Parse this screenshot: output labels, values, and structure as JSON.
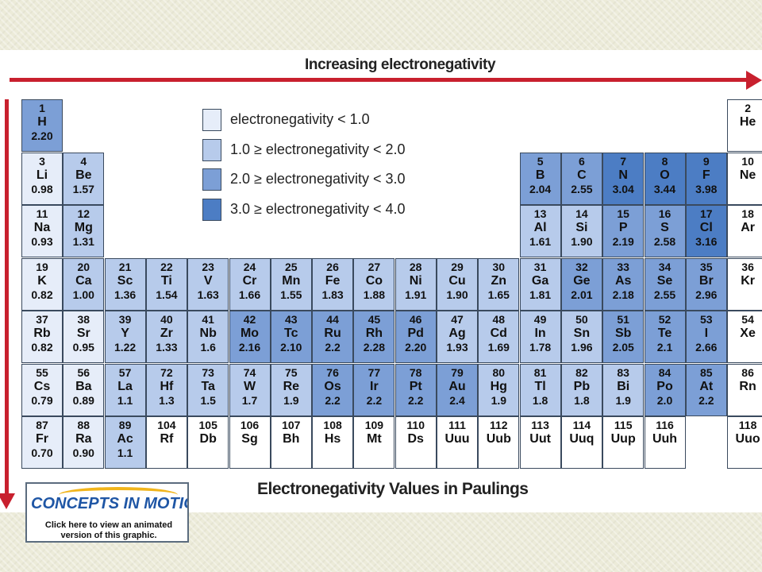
{
  "titles": {
    "top": "Increasing electronegativity",
    "bottom": "Electronegativity Values in Paulings"
  },
  "colors": {
    "arrow": "#c8202e",
    "lt_1_0": "#e6edf9",
    "range_1_0_2_0": "#b7cbeb",
    "range_2_0_3_0": "#7c9fd6",
    "range_3_0_4_0": "#4c7dc4",
    "none": "#ffffff"
  },
  "legend": [
    {
      "text": "electronegativity < 1.0",
      "color": "#e6edf9"
    },
    {
      "text": "1.0 ≥ electronegativity < 2.0",
      "color": "#b7cbeb"
    },
    {
      "text": "2.0 ≥ electronegativity < 3.0",
      "color": "#7c9fd6"
    },
    {
      "text": "3.0 ≥ electronegativity < 4.0",
      "color": "#4c7dc4"
    }
  ],
  "elements": [
    {
      "n": "1",
      "s": "H",
      "v": "2.20",
      "row": 1,
      "col": 1,
      "c": 3
    },
    {
      "n": "2",
      "s": "He",
      "v": "",
      "row": 1,
      "col": 18,
      "c": 0
    },
    {
      "n": "3",
      "s": "Li",
      "v": "0.98",
      "row": 2,
      "col": 1,
      "c": 1
    },
    {
      "n": "4",
      "s": "Be",
      "v": "1.57",
      "row": 2,
      "col": 2,
      "c": 2
    },
    {
      "n": "5",
      "s": "B",
      "v": "2.04",
      "row": 2,
      "col": 13,
      "c": 3
    },
    {
      "n": "6",
      "s": "C",
      "v": "2.55",
      "row": 2,
      "col": 14,
      "c": 3
    },
    {
      "n": "7",
      "s": "N",
      "v": "3.04",
      "row": 2,
      "col": 15,
      "c": 4
    },
    {
      "n": "8",
      "s": "O",
      "v": "3.44",
      "row": 2,
      "col": 16,
      "c": 4
    },
    {
      "n": "9",
      "s": "F",
      "v": "3.98",
      "row": 2,
      "col": 17,
      "c": 4
    },
    {
      "n": "10",
      "s": "Ne",
      "v": "",
      "row": 2,
      "col": 18,
      "c": 0
    },
    {
      "n": "11",
      "s": "Na",
      "v": "0.93",
      "row": 3,
      "col": 1,
      "c": 1
    },
    {
      "n": "12",
      "s": "Mg",
      "v": "1.31",
      "row": 3,
      "col": 2,
      "c": 2
    },
    {
      "n": "13",
      "s": "Al",
      "v": "1.61",
      "row": 3,
      "col": 13,
      "c": 2
    },
    {
      "n": "14",
      "s": "Si",
      "v": "1.90",
      "row": 3,
      "col": 14,
      "c": 2
    },
    {
      "n": "15",
      "s": "P",
      "v": "2.19",
      "row": 3,
      "col": 15,
      "c": 3
    },
    {
      "n": "16",
      "s": "S",
      "v": "2.58",
      "row": 3,
      "col": 16,
      "c": 3
    },
    {
      "n": "17",
      "s": "Cl",
      "v": "3.16",
      "row": 3,
      "col": 17,
      "c": 4
    },
    {
      "n": "18",
      "s": "Ar",
      "v": "",
      "row": 3,
      "col": 18,
      "c": 0
    },
    {
      "n": "19",
      "s": "K",
      "v": "0.82",
      "row": 4,
      "col": 1,
      "c": 1
    },
    {
      "n": "20",
      "s": "Ca",
      "v": "1.00",
      "row": 4,
      "col": 2,
      "c": 2
    },
    {
      "n": "21",
      "s": "Sc",
      "v": "1.36",
      "row": 4,
      "col": 3,
      "c": 2
    },
    {
      "n": "22",
      "s": "Ti",
      "v": "1.54",
      "row": 4,
      "col": 4,
      "c": 2
    },
    {
      "n": "23",
      "s": "V",
      "v": "1.63",
      "row": 4,
      "col": 5,
      "c": 2
    },
    {
      "n": "24",
      "s": "Cr",
      "v": "1.66",
      "row": 4,
      "col": 6,
      "c": 2
    },
    {
      "n": "25",
      "s": "Mn",
      "v": "1.55",
      "row": 4,
      "col": 7,
      "c": 2
    },
    {
      "n": "26",
      "s": "Fe",
      "v": "1.83",
      "row": 4,
      "col": 8,
      "c": 2
    },
    {
      "n": "27",
      "s": "Co",
      "v": "1.88",
      "row": 4,
      "col": 9,
      "c": 2
    },
    {
      "n": "28",
      "s": "Ni",
      "v": "1.91",
      "row": 4,
      "col": 10,
      "c": 2
    },
    {
      "n": "29",
      "s": "Cu",
      "v": "1.90",
      "row": 4,
      "col": 11,
      "c": 2
    },
    {
      "n": "30",
      "s": "Zn",
      "v": "1.65",
      "row": 4,
      "col": 12,
      "c": 2
    },
    {
      "n": "31",
      "s": "Ga",
      "v": "1.81",
      "row": 4,
      "col": 13,
      "c": 2
    },
    {
      "n": "32",
      "s": "Ge",
      "v": "2.01",
      "row": 4,
      "col": 14,
      "c": 3
    },
    {
      "n": "33",
      "s": "As",
      "v": "2.18",
      "row": 4,
      "col": 15,
      "c": 3
    },
    {
      "n": "34",
      "s": "Se",
      "v": "2.55",
      "row": 4,
      "col": 16,
      "c": 3
    },
    {
      "n": "35",
      "s": "Br",
      "v": "2.96",
      "row": 4,
      "col": 17,
      "c": 3
    },
    {
      "n": "36",
      "s": "Kr",
      "v": "",
      "row": 4,
      "col": 18,
      "c": 0
    },
    {
      "n": "37",
      "s": "Rb",
      "v": "0.82",
      "row": 5,
      "col": 1,
      "c": 1
    },
    {
      "n": "38",
      "s": "Sr",
      "v": "0.95",
      "row": 5,
      "col": 2,
      "c": 1
    },
    {
      "n": "39",
      "s": "Y",
      "v": "1.22",
      "row": 5,
      "col": 3,
      "c": 2
    },
    {
      "n": "40",
      "s": "Zr",
      "v": "1.33",
      "row": 5,
      "col": 4,
      "c": 2
    },
    {
      "n": "41",
      "s": "Nb",
      "v": "1.6",
      "row": 5,
      "col": 5,
      "c": 2
    },
    {
      "n": "42",
      "s": "Mo",
      "v": "2.16",
      "row": 5,
      "col": 6,
      "c": 3
    },
    {
      "n": "43",
      "s": "Tc",
      "v": "2.10",
      "row": 5,
      "col": 7,
      "c": 3
    },
    {
      "n": "44",
      "s": "Ru",
      "v": "2.2",
      "row": 5,
      "col": 8,
      "c": 3
    },
    {
      "n": "45",
      "s": "Rh",
      "v": "2.28",
      "row": 5,
      "col": 9,
      "c": 3
    },
    {
      "n": "46",
      "s": "Pd",
      "v": "2.20",
      "row": 5,
      "col": 10,
      "c": 3
    },
    {
      "n": "47",
      "s": "Ag",
      "v": "1.93",
      "row": 5,
      "col": 11,
      "c": 2
    },
    {
      "n": "48",
      "s": "Cd",
      "v": "1.69",
      "row": 5,
      "col": 12,
      "c": 2
    },
    {
      "n": "49",
      "s": "In",
      "v": "1.78",
      "row": 5,
      "col": 13,
      "c": 2
    },
    {
      "n": "50",
      "s": "Sn",
      "v": "1.96",
      "row": 5,
      "col": 14,
      "c": 2
    },
    {
      "n": "51",
      "s": "Sb",
      "v": "2.05",
      "row": 5,
      "col": 15,
      "c": 3
    },
    {
      "n": "52",
      "s": "Te",
      "v": "2.1",
      "row": 5,
      "col": 16,
      "c": 3
    },
    {
      "n": "53",
      "s": "I",
      "v": "2.66",
      "row": 5,
      "col": 17,
      "c": 3
    },
    {
      "n": "54",
      "s": "Xe",
      "v": "",
      "row": 5,
      "col": 18,
      "c": 0
    },
    {
      "n": "55",
      "s": "Cs",
      "v": "0.79",
      "row": 6,
      "col": 1,
      "c": 1
    },
    {
      "n": "56",
      "s": "Ba",
      "v": "0.89",
      "row": 6,
      "col": 2,
      "c": 1
    },
    {
      "n": "57",
      "s": "La",
      "v": "1.1",
      "row": 6,
      "col": 3,
      "c": 2
    },
    {
      "n": "72",
      "s": "Hf",
      "v": "1.3",
      "row": 6,
      "col": 4,
      "c": 2
    },
    {
      "n": "73",
      "s": "Ta",
      "v": "1.5",
      "row": 6,
      "col": 5,
      "c": 2
    },
    {
      "n": "74",
      "s": "W",
      "v": "1.7",
      "row": 6,
      "col": 6,
      "c": 2
    },
    {
      "n": "75",
      "s": "Re",
      "v": "1.9",
      "row": 6,
      "col": 7,
      "c": 2
    },
    {
      "n": "76",
      "s": "Os",
      "v": "2.2",
      "row": 6,
      "col": 8,
      "c": 3
    },
    {
      "n": "77",
      "s": "Ir",
      "v": "2.2",
      "row": 6,
      "col": 9,
      "c": 3
    },
    {
      "n": "78",
      "s": "Pt",
      "v": "2.2",
      "row": 6,
      "col": 10,
      "c": 3
    },
    {
      "n": "79",
      "s": "Au",
      "v": "2.4",
      "row": 6,
      "col": 11,
      "c": 3
    },
    {
      "n": "80",
      "s": "Hg",
      "v": "1.9",
      "row": 6,
      "col": 12,
      "c": 2
    },
    {
      "n": "81",
      "s": "Tl",
      "v": "1.8",
      "row": 6,
      "col": 13,
      "c": 2
    },
    {
      "n": "82",
      "s": "Pb",
      "v": "1.8",
      "row": 6,
      "col": 14,
      "c": 2
    },
    {
      "n": "83",
      "s": "Bi",
      "v": "1.9",
      "row": 6,
      "col": 15,
      "c": 2
    },
    {
      "n": "84",
      "s": "Po",
      "v": "2.0",
      "row": 6,
      "col": 16,
      "c": 3
    },
    {
      "n": "85",
      "s": "At",
      "v": "2.2",
      "row": 6,
      "col": 17,
      "c": 3
    },
    {
      "n": "86",
      "s": "Rn",
      "v": "",
      "row": 6,
      "col": 18,
      "c": 0
    },
    {
      "n": "87",
      "s": "Fr",
      "v": "0.70",
      "row": 7,
      "col": 1,
      "c": 1
    },
    {
      "n": "88",
      "s": "Ra",
      "v": "0.90",
      "row": 7,
      "col": 2,
      "c": 1
    },
    {
      "n": "89",
      "s": "Ac",
      "v": "1.1",
      "row": 7,
      "col": 3,
      "c": 2
    },
    {
      "n": "104",
      "s": "Rf",
      "v": "",
      "row": 7,
      "col": 4,
      "c": 0
    },
    {
      "n": "105",
      "s": "Db",
      "v": "",
      "row": 7,
      "col": 5,
      "c": 0
    },
    {
      "n": "106",
      "s": "Sg",
      "v": "",
      "row": 7,
      "col": 6,
      "c": 0
    },
    {
      "n": "107",
      "s": "Bh",
      "v": "",
      "row": 7,
      "col": 7,
      "c": 0
    },
    {
      "n": "108",
      "s": "Hs",
      "v": "",
      "row": 7,
      "col": 8,
      "c": 0
    },
    {
      "n": "109",
      "s": "Mt",
      "v": "",
      "row": 7,
      "col": 9,
      "c": 0
    },
    {
      "n": "110",
      "s": "Ds",
      "v": "",
      "row": 7,
      "col": 10,
      "c": 0
    },
    {
      "n": "111",
      "s": "Uuu",
      "v": "",
      "row": 7,
      "col": 11,
      "c": 0
    },
    {
      "n": "112",
      "s": "Uub",
      "v": "",
      "row": 7,
      "col": 12,
      "c": 0
    },
    {
      "n": "113",
      "s": "Uut",
      "v": "",
      "row": 7,
      "col": 13,
      "c": 0
    },
    {
      "n": "114",
      "s": "Uuq",
      "v": "",
      "row": 7,
      "col": 14,
      "c": 0
    },
    {
      "n": "115",
      "s": "Uup",
      "v": "",
      "row": 7,
      "col": 15,
      "c": 0
    },
    {
      "n": "116",
      "s": "Uuh",
      "v": "",
      "row": 7,
      "col": 16,
      "c": 0
    },
    {
      "n": "118",
      "s": "Uuo",
      "v": "",
      "row": 7,
      "col": 18,
      "c": 0
    }
  ],
  "concepts_button": {
    "logo": "CONCEPTS IN MOTION",
    "caption": "Click here to view an animated version of this graphic."
  }
}
